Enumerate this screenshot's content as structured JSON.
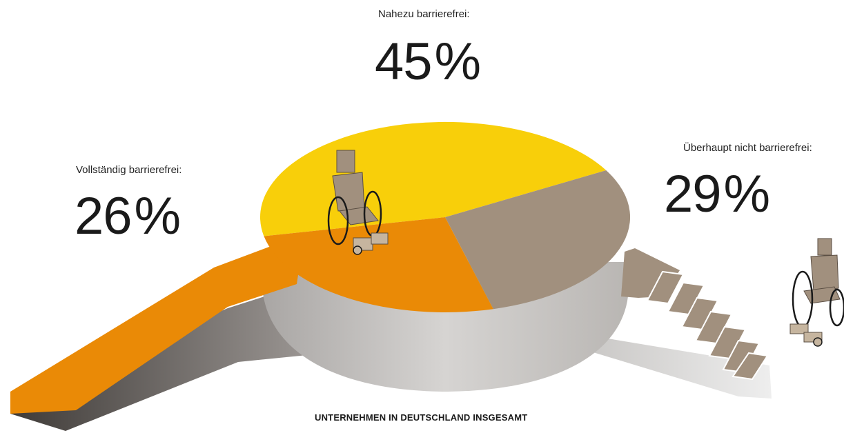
{
  "chart_data": {
    "type": "pie",
    "title": "UNTERNEHMEN IN DEUTSCHLAND INSGESAMT",
    "unit": "%",
    "slices": [
      {
        "label": "Nahezu barrierefrei:",
        "value": 45,
        "color": "#f8cf0a"
      },
      {
        "label": "Vollständig barrierefrei:",
        "value": 26,
        "color": "#ea8a06"
      },
      {
        "label": "Überhaupt nicht barrierefrei:",
        "value": 29,
        "color": "#a1907e"
      }
    ]
  },
  "labels": {
    "nahezu_title": "Nahezu barrierefrei:",
    "nahezu_value": "45",
    "vollst_title": "Vollständig barrierefrei:",
    "vollst_value": "26",
    "nicht_title": "Überhaupt nicht barrierefrei:",
    "nicht_value": "29",
    "percent_sign": "%",
    "footer": "UNTERNEHMEN IN DEUTSCHLAND INSGESAMT"
  },
  "icons": [
    "wheelchair-icon",
    "wheelchair-icon",
    "ramp",
    "stairs"
  ]
}
